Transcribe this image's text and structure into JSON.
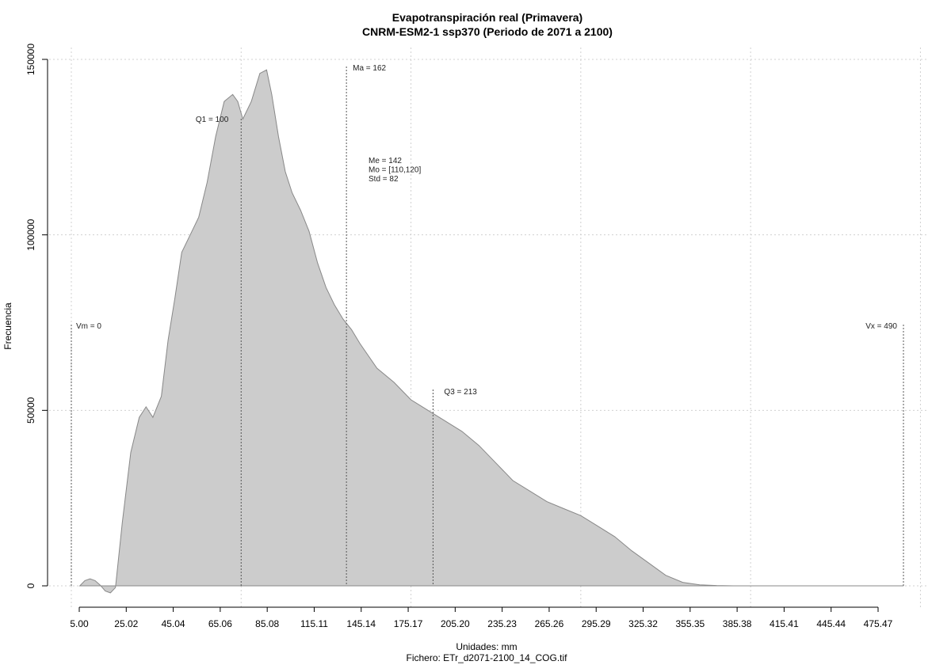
{
  "chart_data": {
    "type": "area",
    "title": "Evapotranspiración real (Primavera)",
    "subtitle": "CNRM-ESM2-1 ssp370 (Periodo de 2071 a 2100)",
    "xlabel": "Unidades: mm",
    "ylabel": "Frecuencia",
    "file_label": "Fichero: ETr_d2071-2100_14_COG.tif",
    "x_ticks": [
      "5.00",
      "25.02",
      "45.04",
      "65.06",
      "85.08",
      "115.11",
      "145.14",
      "175.17",
      "205.20",
      "235.23",
      "265.26",
      "295.29",
      "325.32",
      "355.35",
      "385.38",
      "415.41",
      "445.44",
      "475.47"
    ],
    "x_tick_values": [
      5.0,
      25.02,
      45.04,
      65.06,
      85.08,
      115.11,
      145.14,
      175.17,
      205.2,
      235.23,
      265.26,
      295.29,
      325.32,
      355.35,
      385.38,
      415.41,
      445.44,
      475.47
    ],
    "y_ticks": [
      0,
      50000,
      100000,
      150000
    ],
    "xlim": [
      0,
      490
    ],
    "ylim": [
      0,
      150000
    ],
    "grid": true,
    "fill_color": "#cccccc",
    "line_color": "#888888",
    "series": [
      {
        "x": [
          5,
          8,
          11,
          14,
          17,
          20,
          23,
          26,
          30,
          35,
          40,
          44,
          48,
          53,
          57,
          61,
          65,
          70,
          75,
          80,
          85,
          90,
          95,
          98,
          101,
          106,
          111,
          115,
          118,
          122,
          126,
          130,
          135,
          140,
          145,
          150,
          155,
          160,
          165,
          170,
          180,
          190,
          200,
          210,
          220,
          230,
          240,
          250,
          260,
          270,
          280,
          290,
          300,
          310,
          320,
          330,
          340,
          350,
          360,
          370,
          380,
          390,
          400,
          410,
          420,
          430,
          440,
          450,
          460,
          475,
          490
        ],
        "y": [
          0,
          1500,
          2000,
          1500,
          200,
          -1500,
          -2000,
          -500,
          18000,
          38000,
          48000,
          51000,
          48000,
          54000,
          70000,
          82000,
          95000,
          100000,
          105000,
          115000,
          128000,
          138000,
          140000,
          138000,
          133000,
          138000,
          146000,
          147000,
          140000,
          128000,
          118000,
          112000,
          107000,
          101000,
          92000,
          85000,
          80000,
          76000,
          73000,
          69000,
          62000,
          58000,
          53000,
          50000,
          47000,
          44000,
          40000,
          35000,
          30000,
          27000,
          24000,
          22000,
          20000,
          17000,
          14000,
          10000,
          6500,
          3000,
          1000,
          300,
          100,
          0,
          0,
          0,
          0,
          0,
          0,
          0,
          0,
          0,
          0
        ]
      }
    ],
    "annotations": {
      "vm": {
        "label": "Vm = 0",
        "x": 0
      },
      "vx": {
        "label": "Vx = 490",
        "x": 490
      },
      "q1": {
        "label": "Q1 = 100",
        "x": 100
      },
      "ma": {
        "label": "Ma = 162",
        "x": 162
      },
      "q3": {
        "label": "Q3 = 213",
        "x": 213
      },
      "stats": [
        "Me = 142",
        "Mo = [110,120]",
        "Std = 82"
      ]
    }
  }
}
